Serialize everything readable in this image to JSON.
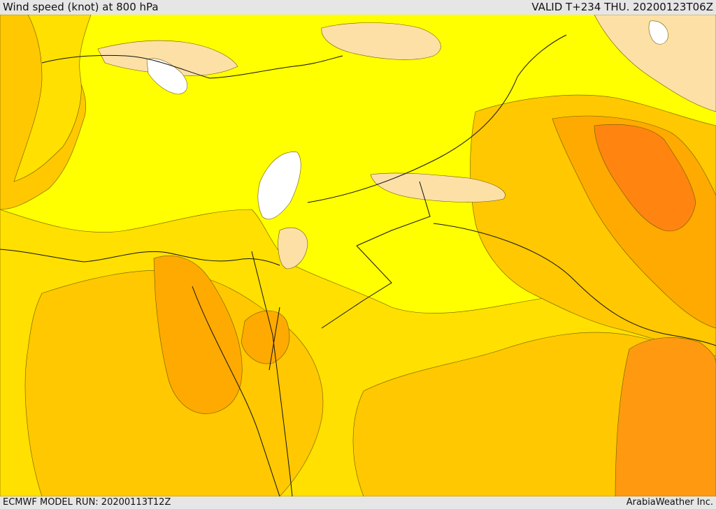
{
  "header": {
    "title": "Wind speed (knot) at 800 hPa",
    "valid": "VALID T+234 THU. 20200123T06Z"
  },
  "footer": {
    "model_run": "ECMWF MODEL RUN: 20200113T12Z",
    "credit": "ArabiaWeather Inc."
  },
  "colors": {
    "white": "#ffffff",
    "peach": "#fce0a6",
    "yellow": "#ffff00",
    "gold": "#ffe000",
    "amber": "#ffc800",
    "orange_light": "#ffaa00",
    "orange": "#ff9a10",
    "orange_dark": "#ff8410",
    "frame": "#e6e6e6"
  }
}
